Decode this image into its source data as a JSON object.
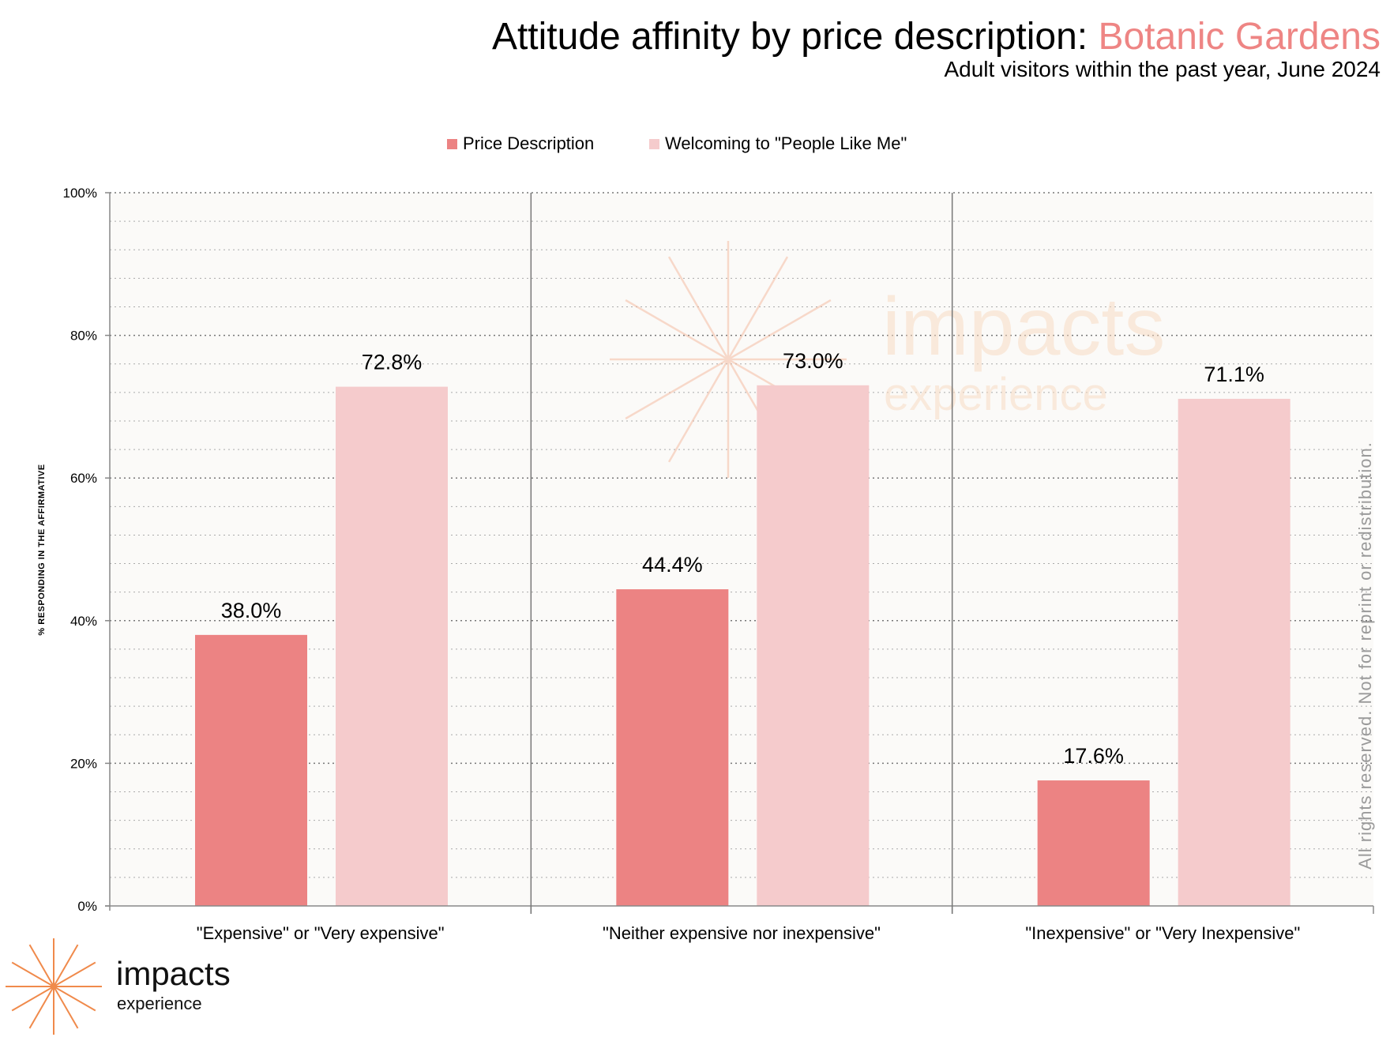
{
  "title": {
    "prefix": "Attitude affinity by price description: ",
    "highlight": "Botanic Gardens"
  },
  "subtitle": "Adult visitors within the past year, June 2024",
  "colors": {
    "series1": "#ec8383",
    "series2": "#f5cbcc",
    "accent": "#ee8584",
    "plot_bg": "#fbfaf8",
    "logo": "#f08a4b"
  },
  "logo": {
    "word": "impacts",
    "sub": "experience"
  },
  "watermark": {
    "word": "impacts",
    "sub": "experience"
  },
  "copyright": "All rights reserved. Not for reprint or redistribution.",
  "chart_data": {
    "type": "bar",
    "title": "Attitude affinity by price description: Botanic Gardens",
    "ylabel": "% RESPONDING IN THE AFFIRMATIVE",
    "xlabel": "",
    "ylim": [
      0,
      100
    ],
    "yticks": [
      "0%",
      "20%",
      "40%",
      "60%",
      "80%",
      "100%"
    ],
    "grid": true,
    "legend_position": "top-center",
    "categories": [
      "\"Expensive\" or \"Very expensive\"",
      "\"Neither expensive nor inexpensive\"",
      "\"Inexpensive\" or \"Very Inexpensive\""
    ],
    "series": [
      {
        "name": "Price Description",
        "values": [
          38.0,
          44.4,
          17.6
        ],
        "labels": [
          "38.0%",
          "44.4%",
          "17.6%"
        ]
      },
      {
        "name": "Welcoming to \"People Like Me\"",
        "values": [
          72.8,
          73.0,
          71.1
        ],
        "labels": [
          "72.8%",
          "73.0%",
          "71.1%"
        ]
      }
    ]
  }
}
